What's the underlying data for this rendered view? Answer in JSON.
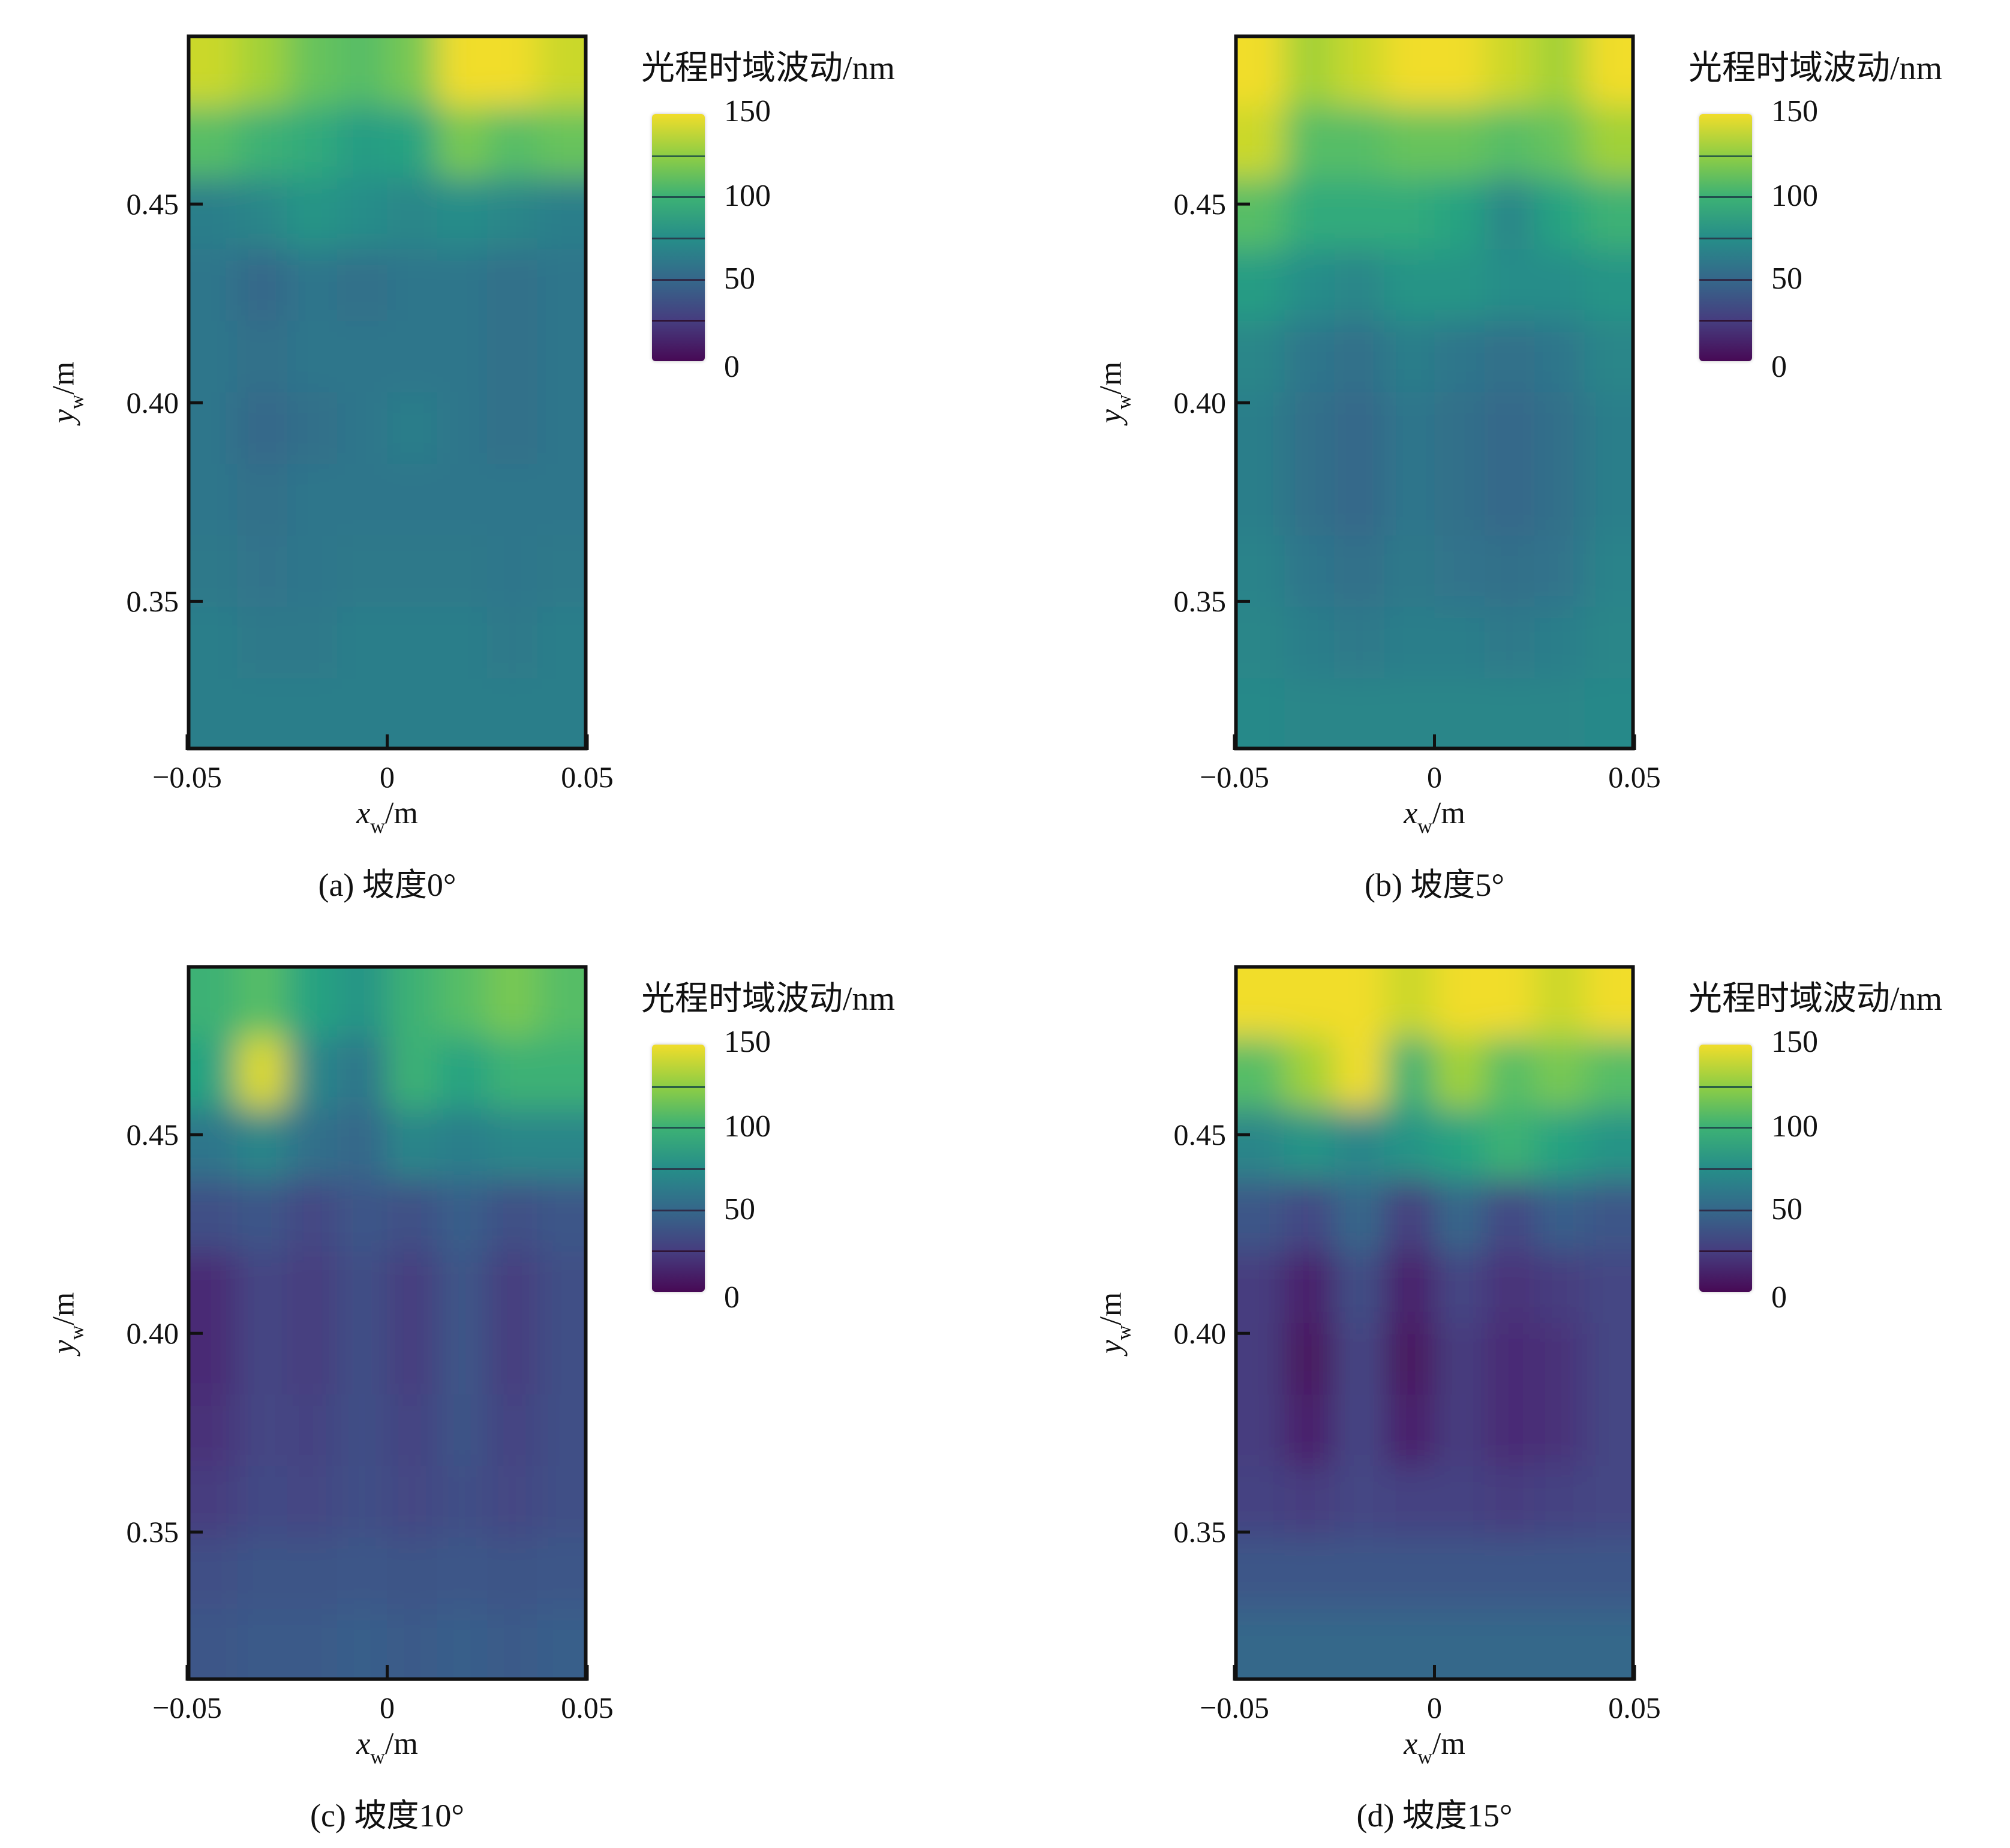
{
  "chart_data": [
    {
      "type": "heatmap",
      "caption": "(a) 坡度0°",
      "xlabel": {
        "var": "x",
        "sub": "w",
        "unit": "/m"
      },
      "ylabel": {
        "var": "y",
        "sub": "w",
        "unit": "/m"
      },
      "xlim": [
        -0.05,
        0.05
      ],
      "ylim": [
        0.3126,
        0.4926
      ],
      "xticks": [
        -0.05,
        0,
        0.05
      ],
      "xtick_labels": [
        "−0.05",
        "0",
        "0.05"
      ],
      "yticks": [
        0.35,
        0.4,
        0.45
      ],
      "ytick_labels": [
        "0.35",
        "0.40",
        "0.45"
      ],
      "colorbar": {
        "title": "光程时域波动/nm",
        "range": [
          0,
          150
        ],
        "ticks": [
          0,
          50,
          100,
          150
        ],
        "tick_labels": [
          "0",
          "50",
          "100",
          "150"
        ],
        "levels": 6,
        "colormap": "viridis"
      },
      "grid_rows_top_to_bottom": [
        [
          140,
          130,
          115,
          110,
          120,
          150,
          150,
          140
        ],
        [
          110,
          100,
          95,
          85,
          90,
          120,
          110,
          115
        ],
        [
          65,
          70,
          80,
          75,
          70,
          75,
          70,
          65
        ],
        [
          60,
          50,
          60,
          55,
          60,
          60,
          55,
          60
        ],
        [
          60,
          55,
          60,
          60,
          60,
          60,
          55,
          60
        ],
        [
          60,
          50,
          55,
          60,
          65,
          60,
          55,
          60
        ],
        [
          60,
          55,
          60,
          60,
          60,
          60,
          60,
          60
        ],
        [
          62,
          58,
          60,
          62,
          62,
          62,
          60,
          62
        ],
        [
          65,
          62,
          62,
          65,
          65,
          65,
          62,
          65
        ],
        [
          65,
          65,
          65,
          65,
          65,
          65,
          65,
          65
        ]
      ]
    },
    {
      "type": "heatmap",
      "caption": "(b) 坡度5°",
      "xlabel": {
        "var": "x",
        "sub": "w",
        "unit": "/m"
      },
      "ylabel": {
        "var": "y",
        "sub": "w",
        "unit": "/m"
      },
      "xlim": [
        -0.05,
        0.05
      ],
      "ylim": [
        0.3126,
        0.4926
      ],
      "xticks": [
        -0.05,
        0,
        0.05
      ],
      "xtick_labels": [
        "−0.05",
        "0",
        "0.05"
      ],
      "yticks": [
        0.35,
        0.4,
        0.45
      ],
      "ytick_labels": [
        "0.35",
        "0.40",
        "0.45"
      ],
      "colorbar": {
        "title": "光程时域波动/nm",
        "range": [
          0,
          150
        ],
        "ticks": [
          0,
          50,
          100,
          150
        ],
        "tick_labels": [
          "0",
          "50",
          "100",
          "150"
        ],
        "levels": 6,
        "colormap": "viridis"
      },
      "grid_rows_top_to_bottom": [
        [
          150,
          130,
          140,
          150,
          150,
          140,
          130,
          150
        ],
        [
          140,
          110,
          110,
          115,
          115,
          110,
          115,
          130
        ],
        [
          110,
          95,
          95,
          95,
          90,
          70,
          90,
          100
        ],
        [
          85,
          75,
          70,
          80,
          80,
          75,
          75,
          80
        ],
        [
          70,
          60,
          55,
          65,
          60,
          55,
          60,
          70
        ],
        [
          65,
          55,
          50,
          60,
          55,
          50,
          55,
          65
        ],
        [
          65,
          55,
          50,
          60,
          55,
          50,
          55,
          65
        ],
        [
          68,
          60,
          55,
          62,
          58,
          55,
          58,
          68
        ],
        [
          70,
          65,
          62,
          65,
          65,
          62,
          65,
          70
        ],
        [
          72,
          70,
          70,
          70,
          70,
          70,
          70,
          72
        ]
      ]
    },
    {
      "type": "heatmap",
      "caption": "(c) 坡度10°",
      "xlabel": {
        "var": "x",
        "sub": "w",
        "unit": "/m"
      },
      "ylabel": {
        "var": "y",
        "sub": "w",
        "unit": "/m"
      },
      "xlim": [
        -0.05,
        0.05
      ],
      "ylim": [
        0.3126,
        0.4926
      ],
      "xticks": [
        -0.05,
        0,
        0.05
      ],
      "xtick_labels": [
        "−0.05",
        "0",
        "0.05"
      ],
      "yticks": [
        0.35,
        0.4,
        0.45
      ],
      "ytick_labels": [
        "0.35",
        "0.40",
        "0.45"
      ],
      "colorbar": {
        "title": "光程时域波动/nm",
        "range": [
          0,
          150
        ],
        "ticks": [
          0,
          50,
          100,
          150
        ],
        "tick_labels": [
          "0",
          "50",
          "100",
          "150"
        ],
        "levels": 6,
        "colormap": "viridis"
      },
      "grid_rows_top_to_bottom": [
        [
          100,
          110,
          90,
          80,
          100,
          110,
          120,
          110
        ],
        [
          90,
          145,
          70,
          60,
          100,
          90,
          100,
          100
        ],
        [
          60,
          70,
          55,
          50,
          70,
          65,
          70,
          70
        ],
        [
          35,
          40,
          30,
          40,
          35,
          45,
          35,
          40
        ],
        [
          15,
          30,
          25,
          35,
          25,
          40,
          25,
          35
        ],
        [
          15,
          30,
          25,
          35,
          25,
          40,
          25,
          35
        ],
        [
          20,
          30,
          28,
          35,
          28,
          38,
          28,
          35
        ],
        [
          25,
          32,
          30,
          35,
          30,
          35,
          30,
          35
        ],
        [
          35,
          38,
          38,
          40,
          38,
          40,
          38,
          40
        ],
        [
          40,
          42,
          42,
          45,
          42,
          45,
          42,
          45
        ]
      ]
    },
    {
      "type": "heatmap",
      "caption": "(d) 坡度15°",
      "xlabel": {
        "var": "x",
        "sub": "w",
        "unit": "/m"
      },
      "ylabel": {
        "var": "y",
        "sub": "w",
        "unit": "/m"
      },
      "xlim": [
        -0.05,
        0.05
      ],
      "ylim": [
        0.3126,
        0.4926
      ],
      "xticks": [
        -0.05,
        0,
        0.05
      ],
      "xtick_labels": [
        "−0.05",
        "0",
        "0.05"
      ],
      "yticks": [
        0.35,
        0.4,
        0.45
      ],
      "ytick_labels": [
        "0.35",
        "0.40",
        "0.45"
      ],
      "colorbar": {
        "title": "光程时域波动/nm",
        "range": [
          0,
          150
        ],
        "ticks": [
          0,
          50,
          100,
          150
        ],
        "tick_labels": [
          "0",
          "50",
          "100",
          "150"
        ],
        "levels": 6,
        "colormap": "viridis"
      },
      "grid_rows_top_to_bottom": [
        [
          150,
          150,
          150,
          140,
          150,
          150,
          140,
          150
        ],
        [
          110,
          130,
          150,
          100,
          130,
          110,
          120,
          110
        ],
        [
          70,
          80,
          70,
          80,
          90,
          100,
          90,
          80
        ],
        [
          40,
          30,
          50,
          25,
          50,
          30,
          45,
          40
        ],
        [
          25,
          10,
          35,
          10,
          30,
          20,
          25,
          30
        ],
        [
          25,
          5,
          30,
          5,
          25,
          15,
          20,
          30
        ],
        [
          25,
          10,
          30,
          10,
          25,
          15,
          20,
          30
        ],
        [
          28,
          25,
          30,
          28,
          28,
          25,
          28,
          30
        ],
        [
          40,
          40,
          40,
          40,
          40,
          40,
          40,
          40
        ],
        [
          50,
          50,
          50,
          50,
          50,
          50,
          50,
          50
        ]
      ]
    }
  ]
}
